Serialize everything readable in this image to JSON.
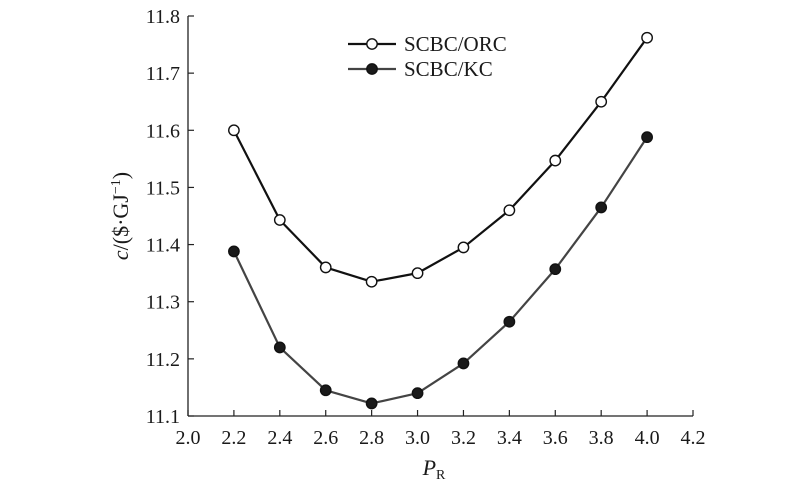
{
  "chart_data": {
    "type": "line",
    "title": "",
    "xlabel": {
      "main": "P",
      "sub": "R"
    },
    "ylabel": {
      "prefix": "c",
      "rest": "/($·GJ",
      "sup": "−1",
      "close": ")"
    },
    "xlim": [
      2.0,
      4.2
    ],
    "ylim": [
      11.1,
      11.8
    ],
    "x_ticks": [
      "2.0",
      "2.2",
      "2.4",
      "2.6",
      "2.8",
      "3.0",
      "3.2",
      "3.4",
      "3.6",
      "3.8",
      "4.0",
      "4.2"
    ],
    "y_ticks": [
      "11.1",
      "11.2",
      "11.3",
      "11.4",
      "11.5",
      "11.6",
      "11.7",
      "11.8"
    ],
    "grid": false,
    "legend_position": "top-center",
    "x": [
      2.2,
      2.4,
      2.6,
      2.8,
      3.0,
      3.2,
      3.4,
      3.6,
      3.8,
      4.0
    ],
    "series": [
      {
        "name": "SCBC/ORC",
        "marker": "open-circle",
        "color": "#111111",
        "values": [
          11.6,
          11.443,
          11.36,
          11.335,
          11.35,
          11.395,
          11.46,
          11.547,
          11.65,
          11.762
        ]
      },
      {
        "name": "SCBC/KC",
        "marker": "filled-circle",
        "color": "#444444",
        "values": [
          11.388,
          11.22,
          11.145,
          11.122,
          11.14,
          11.192,
          11.265,
          11.357,
          11.465,
          11.588
        ]
      }
    ]
  }
}
